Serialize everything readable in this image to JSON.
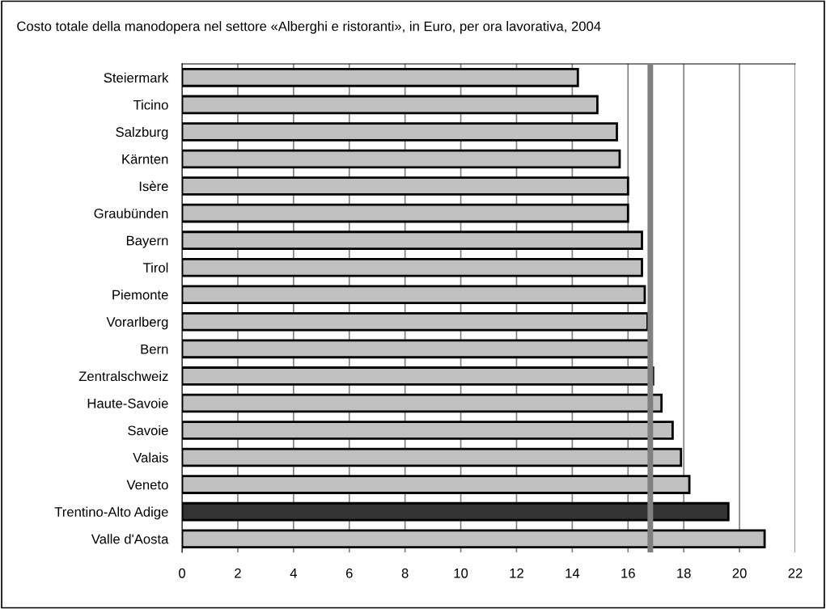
{
  "chart_data": {
    "type": "bar",
    "orientation": "horizontal",
    "title": "Costo totale della manodopera nel settore «Alberghi e ristoranti», in Euro, per ora lavorativa, 2004",
    "categories": [
      "Steiermark",
      "Ticino",
      "Salzburg",
      "Kärnten",
      "Isère",
      "Graubünden",
      "Bayern",
      "Tirol",
      "Piemonte",
      "Vorarlberg",
      "Bern",
      "Zentralschweiz",
      "Haute-Savoie",
      "Savoie",
      "Valais",
      "Veneto",
      "Trentino-Alto Adige",
      "Valle d'Aosta"
    ],
    "values": [
      14.2,
      14.9,
      15.6,
      15.7,
      16.0,
      16.0,
      16.5,
      16.5,
      16.6,
      16.7,
      16.8,
      16.9,
      17.2,
      17.6,
      17.9,
      18.2,
      19.6,
      20.9
    ],
    "colors": [
      "#c0c0c0",
      "#c0c0c0",
      "#c0c0c0",
      "#c0c0c0",
      "#c0c0c0",
      "#c0c0c0",
      "#c0c0c0",
      "#c0c0c0",
      "#c0c0c0",
      "#c0c0c0",
      "#c0c0c0",
      "#c0c0c0",
      "#c0c0c0",
      "#c0c0c0",
      "#c0c0c0",
      "#c0c0c0",
      "#333333",
      "#c0c0c0"
    ],
    "xlim": [
      0,
      22
    ],
    "xticks": [
      0,
      2,
      4,
      6,
      8,
      10,
      12,
      14,
      16,
      18,
      20,
      22
    ],
    "ref_lines": [
      {
        "axis": "x",
        "value": 16.8,
        "color": "#808080"
      }
    ],
    "grid": "x",
    "legend": false
  }
}
